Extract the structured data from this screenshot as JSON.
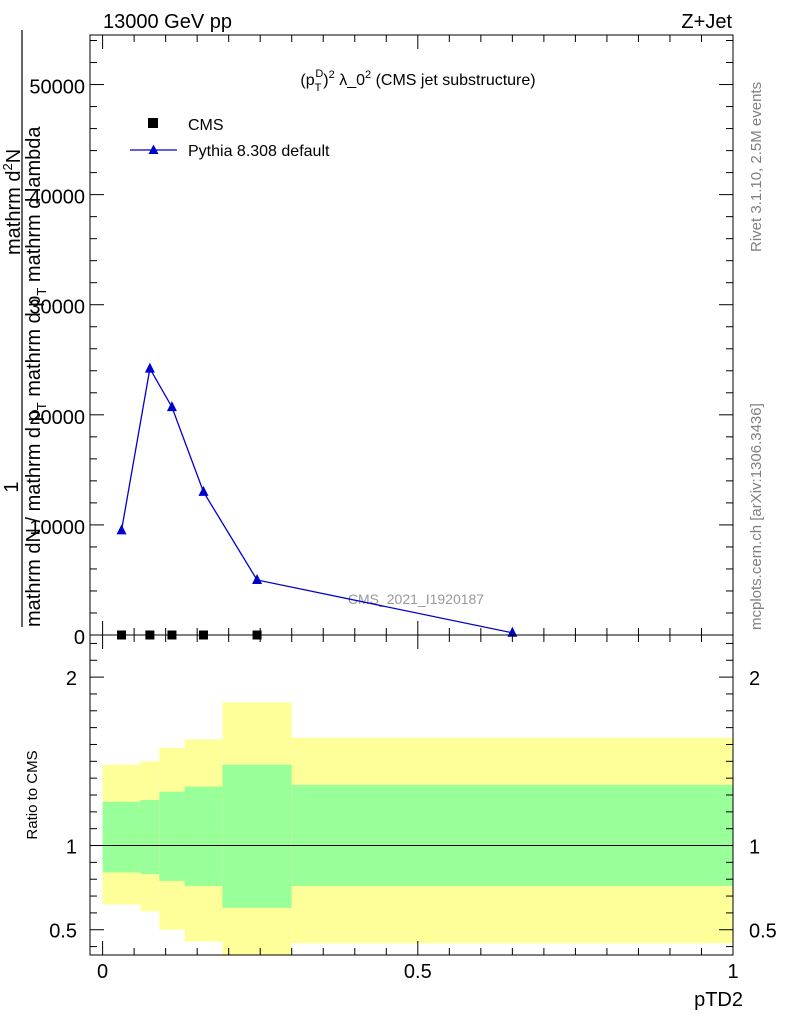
{
  "header": {
    "energy": "13000 GeV pp",
    "process": "Z+Jet"
  },
  "side": {
    "rivet": "Rivet 3.1.10,  2.5M events",
    "mcplots": "mcplots.cern.ch [arXiv:1306.3436]"
  },
  "chart_data": [
    {
      "type": "line",
      "title": "(p_T^D)^2 λ_0^2 (CMS jet substructure)",
      "title_parts": {
        "base": "(p",
        "sub": "T",
        "sup1": "D",
        "sup2": "2",
        "rest": " λ_0",
        "sup3": "2",
        "tail": " (CMS jet substructure)"
      },
      "ylabel_num": "1",
      "ylabel_den": "mathrm dN / mathrm d p_T mathrm d p_T mathrm d lambda",
      "ylabel_den_parts": [
        "mathrm dN / mathrm d p",
        "T",
        "mathrm d p",
        "T",
        "mathrm d lambda"
      ],
      "ylabel_num_parts": [
        "mathrm d",
        "2",
        "N"
      ],
      "watermark": "CMS_2021_I1920187",
      "ylim": [
        0,
        54500
      ],
      "xlim": [
        -0.02,
        1.0
      ],
      "yticks": [
        0,
        10000,
        20000,
        30000,
        40000,
        50000
      ],
      "ytick_labels": [
        "0",
        "10000",
        "20000",
        "30000",
        "40000",
        "50000"
      ],
      "legend_position": "top-left",
      "series": [
        {
          "name": "CMS",
          "marker": "square",
          "color": "#000000",
          "x": [
            0.03,
            0.075,
            0.11,
            0.16,
            0.245
          ],
          "y": [
            0,
            0,
            0,
            0,
            0
          ]
        },
        {
          "name": "Pythia 8.308 default",
          "marker": "triangle",
          "color": "#0000cc",
          "x": [
            0.03,
            0.075,
            0.11,
            0.16,
            0.245,
            0.65
          ],
          "y": [
            9500,
            24200,
            20700,
            13000,
            5000,
            200
          ]
        }
      ]
    },
    {
      "type": "area",
      "ylabel": "Ratio to CMS",
      "xlabel": "pTD2",
      "ylim": [
        0.35,
        2.25
      ],
      "xlim": [
        -0.02,
        1.0
      ],
      "yticks": [
        0.5,
        1,
        2
      ],
      "ytick_labels": [
        "0.5",
        "1",
        "2"
      ],
      "xticks": [
        0,
        0.5,
        1
      ],
      "xtick_labels": [
        "0",
        "0.5",
        "1"
      ],
      "reference_line": 1,
      "bands": {
        "inner_color": "#99ff99",
        "outer_color": "#ffff99",
        "bins": [
          {
            "x0": 0.0,
            "x1": 0.06,
            "inner": [
              0.84,
              1.26
            ],
            "outer": [
              0.65,
              1.48
            ]
          },
          {
            "x0": 0.06,
            "x1": 0.09,
            "inner": [
              0.83,
              1.27
            ],
            "outer": [
              0.61,
              1.5
            ]
          },
          {
            "x0": 0.09,
            "x1": 0.13,
            "inner": [
              0.79,
              1.32
            ],
            "outer": [
              0.5,
              1.58
            ]
          },
          {
            "x0": 0.13,
            "x1": 0.19,
            "inner": [
              0.76,
              1.35
            ],
            "outer": [
              0.43,
              1.63
            ]
          },
          {
            "x0": 0.19,
            "x1": 0.3,
            "inner": [
              0.63,
              1.48
            ],
            "outer": [
              0.33,
              1.85
            ]
          },
          {
            "x0": 0.3,
            "x1": 1.0,
            "inner": [
              0.76,
              1.36
            ],
            "outer": [
              0.42,
              1.64
            ]
          }
        ]
      }
    }
  ]
}
